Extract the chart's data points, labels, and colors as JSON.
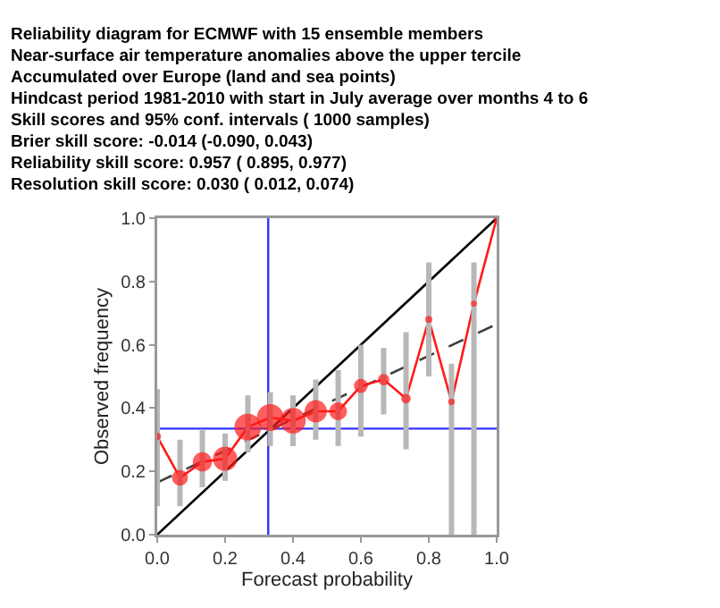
{
  "chart_data": {
    "type": "line",
    "title": "Reliability diagram for ECMWF with 15 ensemble members",
    "subtitle": "Near-surface air temperature anomalies above the upper tercile\nAccumulated over Europe (land and sea points)\nHindcast period 1981-2010 with start in July average over months 4 to 6\nSkill scores and 95% conf. intervals ( 1000 samples)",
    "annotations": [
      "Brier skill score: -0.014 (-0.090, 0.043)",
      "Reliability skill score: 0.957 ( 0.895, 0.977)",
      "Resolution skill score: 0.030 ( 0.012, 0.074)"
    ],
    "xlabel": "Forecast probability",
    "ylabel": "Observed frequency",
    "xlim": [
      0,
      1
    ],
    "xticks": [
      {
        "value": 0,
        "label": "0.0"
      },
      0.2,
      0.4,
      0.6,
      0.8,
      {
        "value": 1,
        "label": "1.0"
      }
    ],
    "ylim": [
      0,
      1
    ],
    "yticks": [
      {
        "value": 0,
        "label": "0.0"
      },
      0.2,
      0.4,
      0.6,
      0.8,
      {
        "value": 1,
        "label": "1.0"
      }
    ],
    "grid": false,
    "ref_lines": [
      {
        "axis": "x",
        "value": 0.327,
        "color": "#3333ff"
      },
      {
        "axis": "y",
        "value": 0.335,
        "color": "#3333ff"
      }
    ],
    "series": [
      {
        "color": "#000000",
        "x": [
          0,
          1
        ],
        "values": [
          0,
          1
        ],
        "marker": "none",
        "line_style": "solid"
      },
      {
        "color": "#404040",
        "x": [
          0,
          1
        ],
        "values": [
          0.165,
          0.665
        ],
        "marker": "none",
        "line_style": "dashed"
      },
      {
        "color": "#ff1a1a",
        "marker": "none",
        "line_style": "solid",
        "x": [
          0,
          0.067,
          0.133,
          0.2,
          0.267,
          0.333,
          0.4,
          0.467,
          0.533,
          0.6,
          0.667,
          0.733,
          0.8,
          0.867,
          0.933,
          1
        ],
        "values": [
          0.31,
          0.18,
          0.23,
          0.24,
          0.34,
          0.37,
          0.36,
          0.39,
          0.39,
          0.47,
          0.49,
          0.43,
          0.68,
          0.42,
          0.73,
          1.0
        ]
      },
      {
        "type": "bubble",
        "color": "#ff1a1a",
        "marker": "circle",
        "x": [
          0,
          0.067,
          0.133,
          0.2,
          0.267,
          0.333,
          0.4,
          0.467,
          0.533,
          0.6,
          0.667,
          0.733,
          0.8,
          0.867,
          0.933,
          1
        ],
        "values": [
          0.31,
          0.18,
          0.23,
          0.24,
          0.34,
          0.37,
          0.36,
          0.39,
          0.39,
          0.47,
          0.49,
          0.43,
          0.68,
          0.42,
          0.73,
          1.0
        ],
        "sizes": [
          0.08,
          0.35,
          0.51,
          0.82,
          1,
          1,
          0.91,
          0.69,
          0.44,
          0.27,
          0.18,
          0.13,
          0.07,
          0.06,
          0.05,
          0.05
        ],
        "errors": [
          [
            0.09,
            0.46
          ],
          [
            0.09,
            0.3
          ],
          [
            0.15,
            0.33
          ],
          [
            0.17,
            0.32
          ],
          [
            0.26,
            0.44
          ],
          [
            0.28,
            0.45
          ],
          [
            0.28,
            0.44
          ],
          [
            0.3,
            0.49
          ],
          [
            0.28,
            0.52
          ],
          [
            0.31,
            0.6
          ],
          [
            0.38,
            0.59
          ],
          [
            0.27,
            0.64
          ],
          [
            0.5,
            0.86
          ],
          [
            0,
            0.54
          ],
          [
            0,
            0.86
          ],
          null
        ]
      }
    ]
  }
}
